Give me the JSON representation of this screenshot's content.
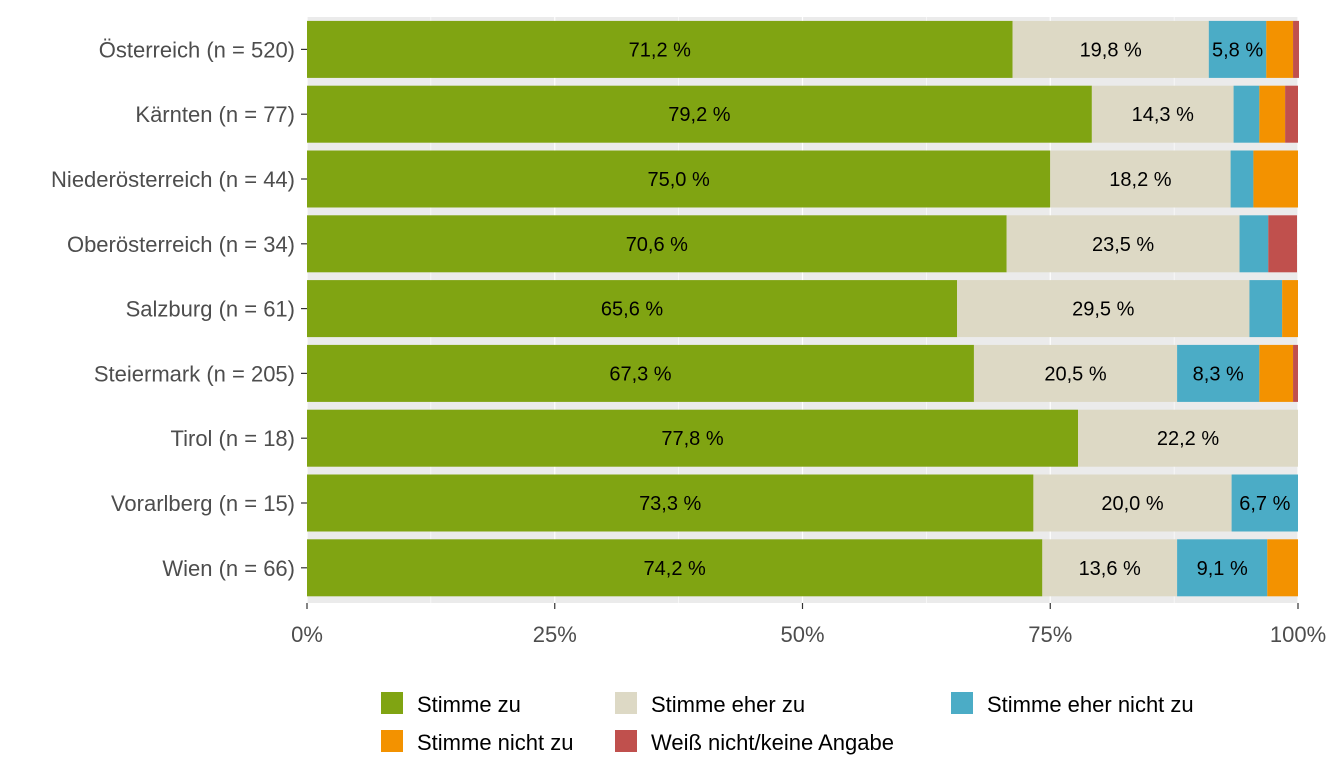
{
  "chart_data": {
    "type": "bar",
    "orientation": "horizontal",
    "stacked": "percent",
    "title": "",
    "xlabel": "",
    "ylabel": "",
    "xlim": [
      0,
      100
    ],
    "x_ticks": [
      "0%",
      "25%",
      "50%",
      "75%",
      "100%"
    ],
    "grid": true,
    "legend_position": "bottom",
    "categories": [
      "Österreich (n = 520)",
      "Kärnten (n = 77)",
      "Niederösterreich (n = 44)",
      "Oberösterreich (n = 34)",
      "Salzburg (n = 61)",
      "Steiermark (n = 205)",
      "Tirol (n = 18)",
      "Vorarlberg (n = 15)",
      "Wien (n = 66)"
    ],
    "series": [
      {
        "name": "Stimme zu",
        "color": "#80a412",
        "values": [
          71.2,
          79.2,
          75.0,
          70.6,
          65.6,
          67.3,
          77.8,
          73.3,
          74.2
        ],
        "labels": [
          "71,2 %",
          "79,2 %",
          "75,0 %",
          "70,6 %",
          "65,6 %",
          "67,3 %",
          "77,8 %",
          "73,3 %",
          "74,2 %"
        ]
      },
      {
        "name": "Stimme eher zu",
        "color": "#ddd9c5",
        "values": [
          19.8,
          14.3,
          18.2,
          23.5,
          29.5,
          20.5,
          22.2,
          20.0,
          13.6
        ],
        "labels": [
          "19,8 %",
          "14,3 %",
          "18,2 %",
          "23,5 %",
          "29,5 %",
          "20,5 %",
          "22,2 %",
          "20,0 %",
          "13,6 %"
        ]
      },
      {
        "name": "Stimme eher nicht zu",
        "color": "#4bacc6",
        "values": [
          5.8,
          2.6,
          2.3,
          2.9,
          3.3,
          8.3,
          0,
          6.7,
          9.1
        ],
        "labels": [
          "5,8 %",
          "",
          "",
          "",
          "",
          "8,3 %",
          "",
          "6,7 %",
          "9,1 %"
        ]
      },
      {
        "name": "Stimme nicht zu",
        "color": "#f39200",
        "values": [
          2.7,
          2.6,
          4.5,
          0,
          1.6,
          3.4,
          0,
          0,
          3.1
        ],
        "labels": [
          "",
          "",
          "",
          "",
          "",
          "",
          "",
          "",
          ""
        ]
      },
      {
        "name": "Weiß nicht/keine Angabe",
        "color": "#c0504d",
        "values": [
          0.6,
          1.3,
          0,
          2.9,
          0,
          0.5,
          0,
          0,
          0
        ],
        "labels": [
          "",
          "",
          "",
          "",
          "",
          "",
          "",
          "",
          ""
        ]
      }
    ]
  }
}
